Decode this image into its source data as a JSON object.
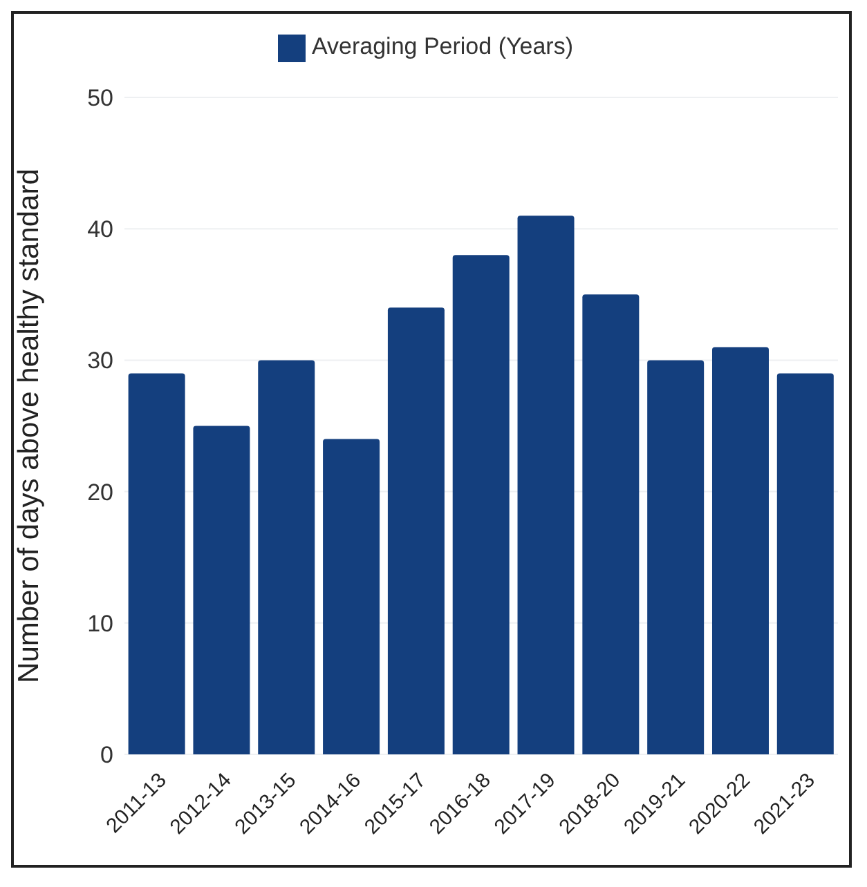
{
  "chart_data": {
    "type": "bar",
    "ylabel": "Number of days above healthy standard",
    "categories": [
      "2011-13",
      "2012-14",
      "2013-15",
      "2014-16",
      "2015-17",
      "2016-18",
      "2017-19",
      "2018-20",
      "2019-21",
      "2020-22",
      "2021-23"
    ],
    "series": [
      {
        "name": "Averaging Period (Years)",
        "color": "#143f7e",
        "values": [
          29,
          25,
          30,
          24,
          34,
          38,
          41,
          35,
          30,
          31,
          29
        ]
      }
    ],
    "ylim": [
      0,
      50
    ],
    "yticks": [
      0,
      10,
      20,
      30,
      40,
      50
    ],
    "grid": "y",
    "legend": "top"
  }
}
